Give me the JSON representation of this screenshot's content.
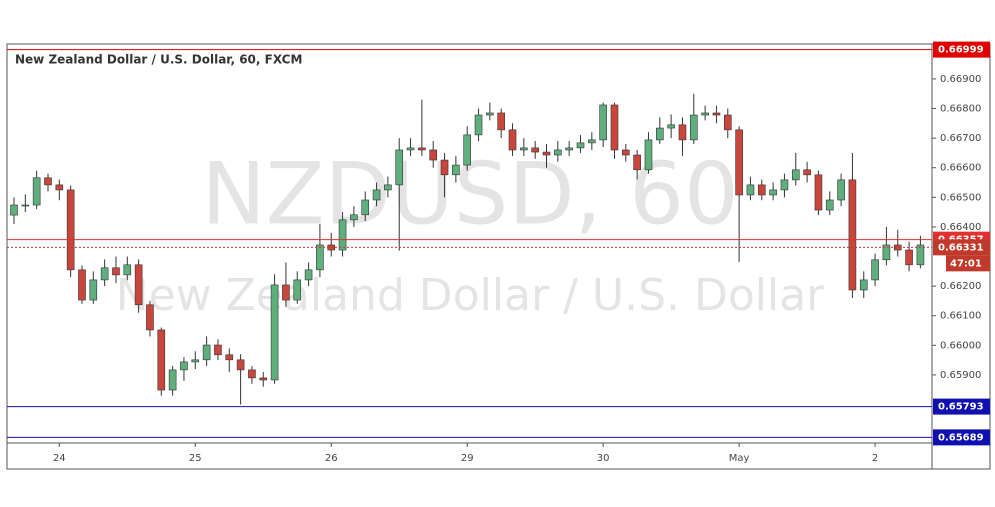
{
  "chart_data": {
    "type": "candlestick",
    "title": "New Zealand Dollar / U.S. Dollar, 60, FXCM",
    "watermark": {
      "symbol": "NZDUSD, 60",
      "name": "New Zealand Dollar / U.S. Dollar"
    },
    "categories": [
      null,
      null,
      null,
      null,
      "24",
      null,
      null,
      null,
      null,
      null,
      null,
      null,
      null,
      null,
      null,
      null,
      "25",
      null,
      null,
      null,
      null,
      null,
      null,
      null,
      null,
      null,
      null,
      null,
      "26",
      null,
      null,
      null,
      null,
      null,
      null,
      null,
      null,
      null,
      null,
      null,
      "29",
      null,
      null,
      null,
      null,
      null,
      null,
      null,
      null,
      null,
      null,
      null,
      "30",
      null,
      null,
      null,
      null,
      null,
      null,
      null,
      null,
      null,
      null,
      null,
      "May",
      null,
      null,
      null,
      null,
      null,
      null,
      null,
      null,
      null,
      null,
      null,
      "2",
      null,
      null,
      null,
      null
    ],
    "open": [
      0.6644,
      0.66474,
      0.66474,
      0.66566,
      0.66542,
      0.66525,
      0.66255,
      0.66153,
      0.66221,
      0.66262,
      0.66238,
      0.66272,
      0.66137,
      0.66052,
      0.65849,
      0.65917,
      0.65944,
      0.65951,
      0.66001,
      0.65968,
      0.65951,
      0.65917,
      0.6589,
      0.65883,
      0.66204,
      0.66153,
      0.66221,
      0.66255,
      0.66339,
      0.66322,
      0.66424,
      0.66441,
      0.66491,
      0.66525,
      0.66542,
      0.6666,
      0.66667,
      0.6666,
      0.66626,
      0.66576,
      0.66609,
      0.66711,
      0.66778,
      0.66785,
      0.66728,
      0.6666,
      0.66667,
      0.66653,
      0.66643,
      0.6666,
      0.66667,
      0.66684,
      0.66694,
      0.66812,
      0.6666,
      0.66643,
      0.66593,
      0.66694,
      0.66734,
      0.66745,
      0.66694,
      0.66778,
      0.66785,
      0.66778,
      0.66728,
      0.66508,
      0.66542,
      0.66508,
      0.66525,
      0.66559,
      0.66593,
      0.66576,
      0.66457,
      0.66491,
      0.66559,
      0.66187,
      0.66221,
      0.66289,
      0.66339,
      0.66322,
      0.66272
    ],
    "high": [
      0.665,
      0.6651,
      0.6659,
      0.6658,
      0.6656,
      0.6654,
      0.6627,
      0.6625,
      0.6629,
      0.663,
      0.663,
      0.6629,
      0.6615,
      0.6606,
      0.6593,
      0.6596,
      0.6598,
      0.6603,
      0.6602,
      0.6599,
      0.6597,
      0.6593,
      0.6591,
      0.6624,
      0.6628,
      0.6625,
      0.6628,
      0.6641,
      0.6638,
      0.6645,
      0.6647,
      0.6652,
      0.6655,
      0.6657,
      0.667,
      0.667,
      0.6683,
      0.6669,
      0.6665,
      0.6664,
      0.6674,
      0.668,
      0.6682,
      0.668,
      0.6675,
      0.667,
      0.6669,
      0.6668,
      0.6669,
      0.6669,
      0.6671,
      0.6672,
      0.6682,
      0.6682,
      0.6668,
      0.6666,
      0.6672,
      0.6677,
      0.6678,
      0.6677,
      0.6685,
      0.6681,
      0.6681,
      0.668,
      0.6674,
      0.6657,
      0.6656,
      0.6655,
      0.6658,
      0.6665,
      0.6662,
      0.6659,
      0.6652,
      0.6658,
      0.6665,
      0.6625,
      0.6631,
      0.664,
      0.6639,
      0.6635,
      0.6637
    ],
    "low": [
      0.6641,
      0.6645,
      0.6646,
      0.6652,
      0.6649,
      0.6623,
      0.6614,
      0.6614,
      0.662,
      0.6621,
      0.6622,
      0.6611,
      0.6603,
      0.6583,
      0.6583,
      0.6588,
      0.6592,
      0.6593,
      0.6595,
      0.6591,
      0.658,
      0.6587,
      0.6586,
      0.6587,
      0.6613,
      0.6614,
      0.662,
      0.6623,
      0.663,
      0.663,
      0.664,
      0.6642,
      0.6647,
      0.665,
      0.6632,
      0.6664,
      0.6664,
      0.666,
      0.665,
      0.6655,
      0.6659,
      0.6669,
      0.6676,
      0.667,
      0.6664,
      0.6664,
      0.6663,
      0.666,
      0.6662,
      0.6664,
      0.6665,
      0.6666,
      0.6667,
      0.6663,
      0.6662,
      0.6656,
      0.6658,
      0.6668,
      0.667,
      0.6664,
      0.6668,
      0.6676,
      0.6675,
      0.667,
      0.66282,
      0.6649,
      0.6649,
      0.6649,
      0.665,
      0.6654,
      0.6655,
      0.6644,
      0.6644,
      0.6647,
      0.6616,
      0.6616,
      0.662,
      0.6627,
      0.663,
      0.6625,
      0.6626
    ],
    "close": [
      0.66474,
      0.66474,
      0.66566,
      0.66542,
      0.66525,
      0.66255,
      0.66153,
      0.66221,
      0.66262,
      0.66238,
      0.66272,
      0.66137,
      0.66052,
      0.65849,
      0.65917,
      0.65944,
      0.65951,
      0.66001,
      0.65968,
      0.65951,
      0.65917,
      0.6589,
      0.65883,
      0.66204,
      0.66153,
      0.66221,
      0.66255,
      0.66339,
      0.66322,
      0.66424,
      0.66441,
      0.66491,
      0.66525,
      0.66542,
      0.6666,
      0.66667,
      0.6666,
      0.66626,
      0.66576,
      0.66609,
      0.66711,
      0.66778,
      0.66785,
      0.66728,
      0.6666,
      0.66667,
      0.66653,
      0.66643,
      0.6666,
      0.66667,
      0.66684,
      0.66694,
      0.66812,
      0.6666,
      0.66643,
      0.66593,
      0.66694,
      0.66734,
      0.66745,
      0.66694,
      0.66778,
      0.66785,
      0.66778,
      0.66728,
      0.66508,
      0.66542,
      0.66508,
      0.66525,
      0.66559,
      0.66593,
      0.66576,
      0.66457,
      0.66491,
      0.66559,
      0.66187,
      0.66221,
      0.66289,
      0.66339,
      0.66322,
      0.66272,
      0.66339
    ],
    "up_color": "#5fae7e",
    "down_color": "#c9463d",
    "ylim": [
      0.6567,
      0.67018
    ],
    "yticks": [
      {
        "value": 0.659,
        "label": "0.65900"
      },
      {
        "value": 0.66,
        "label": "0.66000"
      },
      {
        "value": 0.661,
        "label": "0.66100"
      },
      {
        "value": 0.662,
        "label": "0.66200"
      },
      {
        "value": 0.664,
        "label": "0.66400"
      },
      {
        "value": 0.665,
        "label": "0.66500"
      },
      {
        "value": 0.666,
        "label": "0.66600"
      },
      {
        "value": 0.667,
        "label": "0.66700"
      },
      {
        "value": 0.668,
        "label": "0.66800"
      },
      {
        "value": 0.669,
        "label": "0.66900"
      }
    ],
    "horizontal_lines": [
      {
        "value": 0.66999,
        "color": "#e00000",
        "style": "solid"
      },
      {
        "value": 0.66357,
        "color": "#e03030",
        "style": "solid"
      },
      {
        "value": 0.66331,
        "color": "#c0392b",
        "style": "dotted"
      },
      {
        "value": 0.65793,
        "color": "#1010b0",
        "style": "solid"
      },
      {
        "value": 0.65689,
        "color": "#1010b0",
        "style": "solid"
      }
    ],
    "countdown": "47:01"
  }
}
